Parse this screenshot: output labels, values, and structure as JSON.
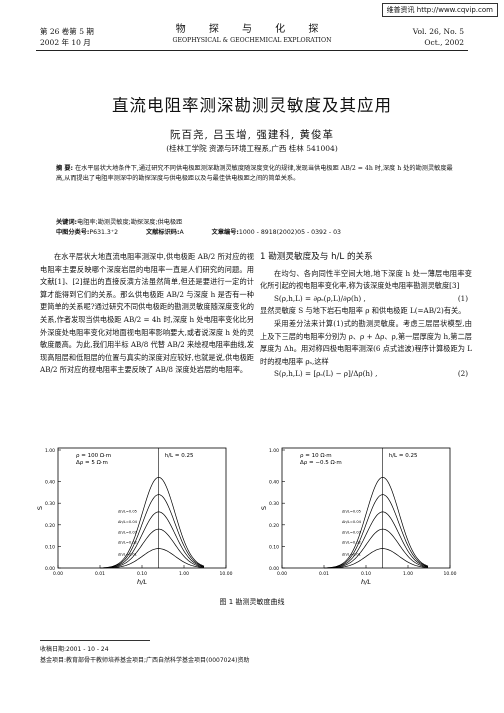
{
  "watermark": "维普资讯 http://www.cqvip.com",
  "header": {
    "volume_cn": "第 26 卷第 5 期",
    "date_cn": "2002 年 10 月",
    "journal_cn": "物 探 与 化 探",
    "journal_en": "GEOPHYSICAL & GEOCHEMICAL EXPLORATION",
    "volume_en": "Vol. 26, No. 5",
    "date_en": "Oct., 2002"
  },
  "title": "直流电阻率测深勘测灵敏度及其应用",
  "authors": "阮百尧, 吕玉增, 强建科, 黄俊革",
  "affiliation": "(桂林工学院 资源与环境工程系,广西 桂林 541004)",
  "abstract": {
    "label": "摘 要:",
    "text": "在水平层状大地条件下,通过研究不同供电极距测深勘测灵敏度随深度变化的规律,发现当供电极距 AB/2 = 4h 时,深度 h 处的勘测灵敏度最高,从而提出了电阻率测深中的勘探深度与供电极距以及与最佳供电极距之间的简单关系。",
    "keywords_label": "关键词:",
    "keywords": "电阻率;勘测灵敏度;勘探深度;供电极距",
    "clc_label": "中图分类号:",
    "clc": "P631.3⁺2",
    "doc_label": "文献标识码:",
    "doc": "A",
    "article_label": "文章编号:",
    "article": "1000 - 8918(2002)05 - 0392 - 03"
  },
  "left_column": {
    "p1": "在水平层状大地直流电阻率测深中,供电极距 AB/2 所对应的视电阻率主要反映哪个深度岩层的电阻率一直是人们研究的问题。用文献[1]、[2]提出的直接反演方法虽然简单,但还是要进行一定的计算才能得到它们的关系。那么供电极距 AB/2 与深度 h 是否有一种更简单的关系呢?通过研究不同供电极距的勘测灵敏度随深度变化的关系,作者发现当供电极距 AB/2 = 4h 时,深度 h 处电阻率变化比另外深度处电阻率变化对地面视电阻率影响要大,或者说深度 h 处的灵敏度最高。为此,我们用半标 AB/8 代替 AB/2 来绘视电阻率曲线,发现高阻层和低阻层的位置与真实的深度对应较好,也就是说,供电极距 AB/2 所对应的视电阻率主要反映了 AB/8 深度处岩层的电阻率。"
  },
  "right_column": {
    "section_title": "1  勘测灵敏度及与 h/L 的关系",
    "p1": "在均匀、各向同性半空间大地,地下深度 h 处一薄层电阻率变化所引起的视电阻率变化率,称为该深度处电阻率勘测灵敏度[3]",
    "eq1": "S(ρ,h,L) = ∂ρₛ(ρ,L)/∂ρ(h) ,",
    "eq1_num": "(1)",
    "p2": "显然灵敏度 S 与地下岩石电阻率 ρ 和供电极距 L(=AB/2)有关。",
    "p3": "采用差分法来计算(1)式的勘测灵敏度。考虑三层层状模型,由上及下三层的电阻率分别为 ρ、ρ + Δρ、ρ,第一层厚度为 h,第二层厚度为 Δh。用对称四极电阻率测深(6 点式滤波)程序计算极距为 L 时的视电阻率 ρₛ,这样",
    "eq2": "S(ρ,h,L) = [ρₛ(L) − ρ]/Δρ(h) ,",
    "eq2_num": "(2)"
  },
  "chart_data": [
    {
      "type": "line",
      "title": "",
      "params": [
        "ρ = 100 Ω·m",
        "Δρ = 5 Ω·m"
      ],
      "annotation": "h/L = 0.25",
      "xlabel": "h/L",
      "ylabel": "S",
      "xscale": "log",
      "xlim": [
        0.001,
        10
      ],
      "xticks": [
        "0.00",
        "0.01",
        "0.10",
        "1.00",
        "10.00"
      ],
      "ylim": [
        0,
        1.0
      ],
      "yticks": [
        "0.00",
        "0.10",
        "0.20",
        "0.30",
        "0.40",
        "1.00"
      ],
      "curve_labels": [
        "Δh/L=0.05",
        "Δh/L=0.04",
        "Δh/L=0.03",
        "Δh/L=0.02",
        "Δh/L=0.01"
      ],
      "series": [
        {
          "name": "Δh/L=0.05",
          "peak_x": 0.25,
          "peak_y": 0.42
        },
        {
          "name": "Δh/L=0.04",
          "peak_x": 0.25,
          "peak_y": 0.34
        },
        {
          "name": "Δh/L=0.03",
          "peak_x": 0.25,
          "peak_y": 0.26
        },
        {
          "name": "Δh/L=0.02",
          "peak_x": 0.25,
          "peak_y": 0.18
        },
        {
          "name": "Δh/L=0.01",
          "peak_x": 0.25,
          "peak_y": 0.09
        }
      ]
    },
    {
      "type": "line",
      "title": "",
      "params": [
        "ρ = 10 Ω·m",
        "Δρ = −0.5 Ω·m"
      ],
      "annotation": "h/L = 0.25",
      "xlabel": "h/L",
      "ylabel": "S",
      "xscale": "log",
      "xlim": [
        0.001,
        10
      ],
      "xticks": [
        "0.00",
        "0.01",
        "0.10",
        "1.00",
        "10.00"
      ],
      "ylim": [
        0,
        1.0
      ],
      "yticks": [
        "0.00",
        "0.10",
        "0.20",
        "0.30",
        "0.40",
        "1.00"
      ],
      "curve_labels": [
        "Δh/L=0.05",
        "Δh/L=0.04",
        "Δh/L=0.03",
        "Δh/L=0.02",
        "Δh/L=0.01"
      ],
      "series": [
        {
          "name": "Δh/L=0.05",
          "peak_x": 0.25,
          "peak_y": 0.42
        },
        {
          "name": "Δh/L=0.04",
          "peak_x": 0.25,
          "peak_y": 0.34
        },
        {
          "name": "Δh/L=0.03",
          "peak_x": 0.25,
          "peak_y": 0.26
        },
        {
          "name": "Δh/L=0.02",
          "peak_x": 0.25,
          "peak_y": 0.18
        },
        {
          "name": "Δh/L=0.01",
          "peak_x": 0.25,
          "peak_y": 0.09
        }
      ]
    }
  ],
  "figure_caption": "图 1  勘测灵敏度曲线",
  "footer": {
    "received": "收稿日期:2001 - 10 - 24",
    "fund": "基金项目:教育部骨干教师培养基金项目;广西自然科学基金项目(0007024)资助"
  }
}
